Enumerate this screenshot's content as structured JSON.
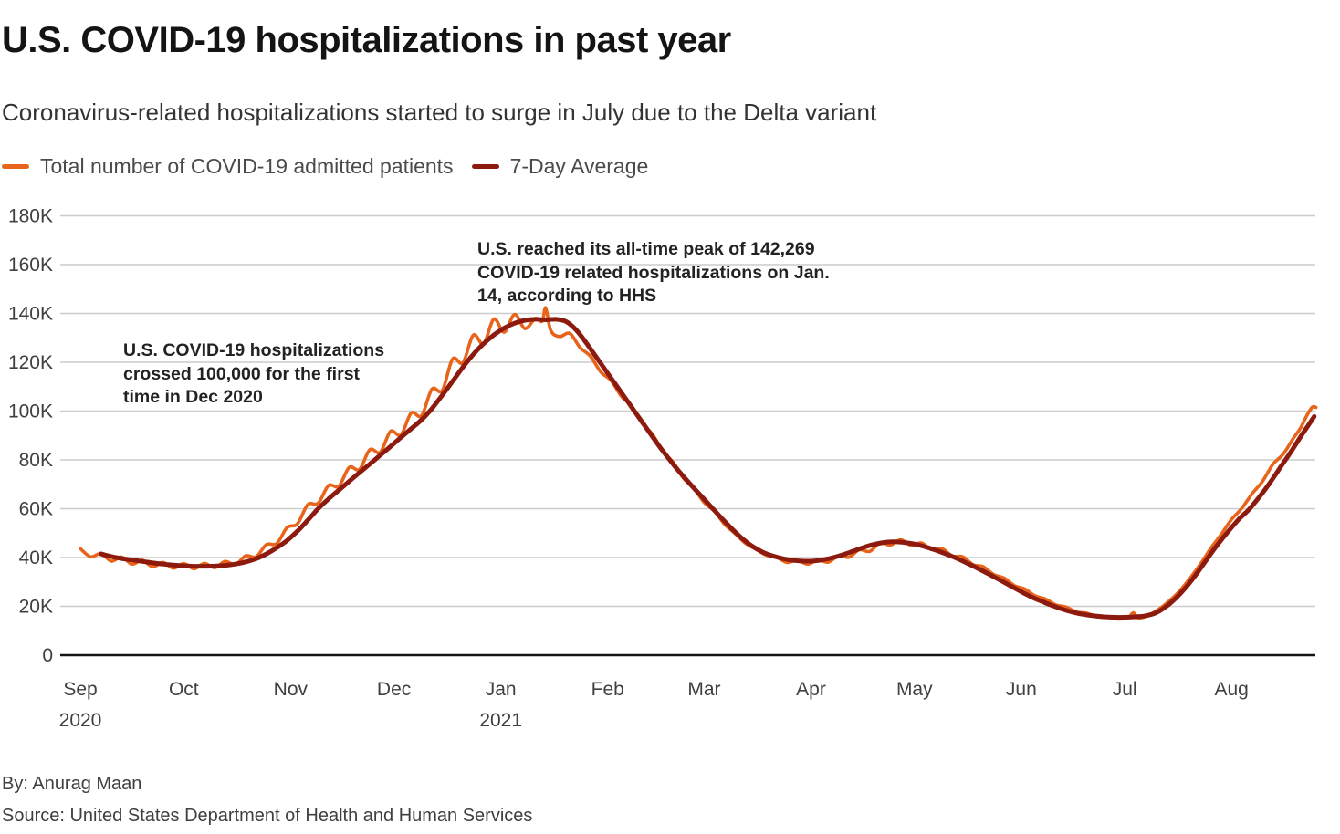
{
  "header": {
    "title": "U.S. COVID-19 hospitalizations in past year",
    "subtitle": "Coronavirus-related hospitalizations started to surge in July due to the Delta variant"
  },
  "legend": {
    "items": [
      {
        "label": "Total number of COVID-19 admitted patients",
        "color": "#E8641A"
      },
      {
        "label": "7-Day Average",
        "color": "#8C1A0E"
      }
    ]
  },
  "annotations": [
    {
      "text": "U.S. COVID-19 hospitalizations\ncrossed 100,000 for the first\ntime in Dec 2020"
    },
    {
      "text": "U.S. reached its all-time peak of 142,269\nCOVID-19 related hospitalizations on Jan.\n14, according to HHS"
    }
  ],
  "footer": {
    "by": "By: Anurag Maan",
    "source": "Source: United States Department of Health and Human Services"
  },
  "chart_data": {
    "type": "line",
    "title": "U.S. COVID-19 hospitalizations in past year",
    "x_unit": "days since Sep 1, 2020",
    "y_unit": "patients (thousands)",
    "xlim": [
      0,
      358.5
    ],
    "ylim": [
      0,
      180
    ],
    "grid": "horizontal",
    "legend_position": "top-left",
    "peak_annotation_value": "142,269",
    "y_ticks": [
      {
        "value": 180,
        "label": "180K"
      },
      {
        "value": 160,
        "label": "160K"
      },
      {
        "value": 140,
        "label": "140K"
      },
      {
        "value": 120,
        "label": "120K"
      },
      {
        "value": 100,
        "label": "100K"
      },
      {
        "value": 80,
        "label": "80K"
      },
      {
        "value": 60,
        "label": "60K"
      },
      {
        "value": 40,
        "label": "40K"
      },
      {
        "value": 20,
        "label": "20K"
      },
      {
        "value": 0,
        "label": "0"
      }
    ],
    "x_ticks": [
      {
        "day": 0,
        "label": "Sep",
        "year": "2020"
      },
      {
        "day": 30,
        "label": "Oct"
      },
      {
        "day": 61,
        "label": "Nov"
      },
      {
        "day": 91,
        "label": "Dec"
      },
      {
        "day": 122,
        "label": "Jan",
        "year": "2021"
      },
      {
        "day": 153,
        "label": "Feb"
      },
      {
        "day": 181,
        "label": "Mar"
      },
      {
        "day": 212,
        "label": "Apr"
      },
      {
        "day": 242,
        "label": "May"
      },
      {
        "day": 273,
        "label": "Jun"
      },
      {
        "day": 303,
        "label": "Jul"
      },
      {
        "day": 334,
        "label": "Aug"
      }
    ],
    "series": [
      {
        "name": "Total number of COVID-19 admitted patients",
        "color": "#E8641A",
        "width": 3.6,
        "points": [
          [
            0,
            43.6
          ],
          [
            3,
            40.3
          ],
          [
            6,
            41.6
          ],
          [
            9,
            38.5
          ],
          [
            12,
            40.2
          ],
          [
            15,
            37.3
          ],
          [
            18,
            38.9
          ],
          [
            21,
            36.2
          ],
          [
            24,
            38.0
          ],
          [
            27,
            35.6
          ],
          [
            30,
            37.5
          ],
          [
            33,
            35.4
          ],
          [
            36,
            37.6
          ],
          [
            39,
            35.8
          ],
          [
            42,
            38.4
          ],
          [
            45,
            37.1
          ],
          [
            48,
            40.7
          ],
          [
            51,
            40.3
          ],
          [
            54,
            45.3
          ],
          [
            57,
            45.7
          ],
          [
            60,
            52.3
          ],
          [
            63,
            53.8
          ],
          [
            66,
            61.7
          ],
          [
            69,
            62.2
          ],
          [
            72,
            69.5
          ],
          [
            75,
            69.2
          ],
          [
            78,
            76.9
          ],
          [
            81,
            76.1
          ],
          [
            84,
            84.2
          ],
          [
            87,
            83.1
          ],
          [
            90,
            91.7
          ],
          [
            93,
            90.2
          ],
          [
            96,
            99.2
          ],
          [
            99,
            98.1
          ],
          [
            102,
            109.0
          ],
          [
            105,
            108.4
          ],
          [
            108,
            121.3
          ],
          [
            111,
            119.8
          ],
          [
            114,
            131.1
          ],
          [
            117,
            127.6
          ],
          [
            120,
            137.7
          ],
          [
            123,
            132.3
          ],
          [
            126,
            139.6
          ],
          [
            129,
            133.8
          ],
          [
            132,
            137.9
          ],
          [
            134,
            136.8
          ],
          [
            135,
            142.3
          ],
          [
            136.5,
            133.0
          ],
          [
            139,
            130.5
          ],
          [
            142,
            131.8
          ],
          [
            145,
            126.0
          ],
          [
            148,
            122.5
          ],
          [
            151,
            116.0
          ],
          [
            154,
            112.5
          ],
          [
            157,
            106.0
          ],
          [
            160,
            102.0
          ],
          [
            163,
            95.0
          ],
          [
            166,
            90.5
          ],
          [
            169,
            83.5
          ],
          [
            172,
            79.0
          ],
          [
            175,
            72.5
          ],
          [
            178,
            68.5
          ],
          [
            181,
            62.5
          ],
          [
            184,
            59.0
          ],
          [
            187,
            53.5
          ],
          [
            190,
            49.8
          ],
          [
            193,
            45.8
          ],
          [
            196,
            43.4
          ],
          [
            199,
            41.0
          ],
          [
            202,
            40.2
          ],
          [
            205,
            38.0
          ],
          [
            208,
            38.9
          ],
          [
            211,
            37.3
          ],
          [
            214,
            39.0
          ],
          [
            217,
            38.1
          ],
          [
            220,
            40.8
          ],
          [
            223,
            40.1
          ],
          [
            226,
            43.2
          ],
          [
            229,
            42.5
          ],
          [
            232,
            46.0
          ],
          [
            235,
            45.1
          ],
          [
            238,
            47.3
          ],
          [
            241,
            45.0
          ],
          [
            244,
            46.0
          ],
          [
            247,
            43.2
          ],
          [
            250,
            43.6
          ],
          [
            253,
            40.6
          ],
          [
            256,
            40.3
          ],
          [
            259,
            37.1
          ],
          [
            262,
            36.2
          ],
          [
            265,
            33.0
          ],
          [
            268,
            31.6
          ],
          [
            271,
            28.5
          ],
          [
            274,
            27.1
          ],
          [
            277,
            24.3
          ],
          [
            280,
            23.0
          ],
          [
            283,
            20.6
          ],
          [
            286,
            19.7
          ],
          [
            289,
            17.7
          ],
          [
            292,
            17.2
          ],
          [
            295,
            15.7
          ],
          [
            298,
            15.6
          ],
          [
            301,
            14.8
          ],
          [
            304,
            15.3
          ],
          [
            305.5,
            17.4
          ],
          [
            307,
            15.2
          ],
          [
            310,
            16.3
          ],
          [
            313,
            18.9
          ],
          [
            316,
            22.3
          ],
          [
            319,
            26.4
          ],
          [
            322,
            31.6
          ],
          [
            325,
            37.4
          ],
          [
            328,
            43.8
          ],
          [
            331,
            49.5
          ],
          [
            334,
            55.6
          ],
          [
            337,
            60.2
          ],
          [
            340,
            66.2
          ],
          [
            343,
            71.2
          ],
          [
            346,
            78.2
          ],
          [
            349,
            82.4
          ],
          [
            352,
            89.0
          ],
          [
            354,
            93.0
          ],
          [
            356,
            98.6
          ],
          [
            357.5,
            101.7
          ],
          [
            358.5,
            101.5
          ]
        ]
      },
      {
        "name": "7-Day Average",
        "color": "#8C1A0E",
        "width": 5,
        "points": [
          [
            6,
            41.5
          ],
          [
            9,
            40.4
          ],
          [
            12,
            39.6
          ],
          [
            15,
            39.0
          ],
          [
            18,
            38.4
          ],
          [
            21,
            37.8
          ],
          [
            24,
            37.3
          ],
          [
            27,
            36.9
          ],
          [
            30,
            36.6
          ],
          [
            33,
            36.4
          ],
          [
            36,
            36.4
          ],
          [
            39,
            36.5
          ],
          [
            42,
            36.8
          ],
          [
            45,
            37.3
          ],
          [
            48,
            38.2
          ],
          [
            51,
            39.5
          ],
          [
            54,
            41.5
          ],
          [
            57,
            44.0
          ],
          [
            60,
            47.0
          ],
          [
            63,
            50.8
          ],
          [
            66,
            55.3
          ],
          [
            69,
            60.0
          ],
          [
            72,
            64.0
          ],
          [
            75,
            67.6
          ],
          [
            78,
            71.2
          ],
          [
            81,
            74.8
          ],
          [
            84,
            78.3
          ],
          [
            87,
            81.9
          ],
          [
            90,
            85.5
          ],
          [
            93,
            89.2
          ],
          [
            96,
            92.8
          ],
          [
            99,
            96.4
          ],
          [
            102,
            101.0
          ],
          [
            105,
            106.5
          ],
          [
            108,
            112.2
          ],
          [
            111,
            118.0
          ],
          [
            114,
            123.2
          ],
          [
            117,
            127.6
          ],
          [
            120,
            131.2
          ],
          [
            123,
            134.0
          ],
          [
            126,
            136.0
          ],
          [
            129,
            137.2
          ],
          [
            132,
            137.6
          ],
          [
            135,
            137.4
          ],
          [
            138,
            137.6
          ],
          [
            141,
            136.6
          ],
          [
            144,
            133.0
          ],
          [
            147,
            127.5
          ],
          [
            150,
            121.5
          ],
          [
            153,
            115.5
          ],
          [
            156,
            109.5
          ],
          [
            159,
            103.5
          ],
          [
            162,
            97.5
          ],
          [
            165,
            91.5
          ],
          [
            168,
            85.5
          ],
          [
            171,
            80.0
          ],
          [
            174,
            74.8
          ],
          [
            177,
            70.0
          ],
          [
            180,
            65.4
          ],
          [
            183,
            60.8
          ],
          [
            186,
            56.2
          ],
          [
            189,
            51.8
          ],
          [
            192,
            47.8
          ],
          [
            195,
            44.6
          ],
          [
            198,
            42.2
          ],
          [
            201,
            40.6
          ],
          [
            204,
            39.5
          ],
          [
            207,
            38.8
          ],
          [
            210,
            38.5
          ],
          [
            213,
            38.6
          ],
          [
            216,
            39.2
          ],
          [
            219,
            40.2
          ],
          [
            222,
            41.5
          ],
          [
            225,
            43.0
          ],
          [
            228,
            44.5
          ],
          [
            231,
            45.6
          ],
          [
            234,
            46.3
          ],
          [
            237,
            46.4
          ],
          [
            240,
            46.0
          ],
          [
            243,
            45.2
          ],
          [
            246,
            44.0
          ],
          [
            249,
            42.6
          ],
          [
            252,
            41.0
          ],
          [
            255,
            39.2
          ],
          [
            258,
            37.2
          ],
          [
            261,
            35.1
          ],
          [
            264,
            32.9
          ],
          [
            267,
            30.6
          ],
          [
            270,
            28.3
          ],
          [
            273,
            26.0
          ],
          [
            276,
            23.8
          ],
          [
            279,
            22.0
          ],
          [
            282,
            20.3
          ],
          [
            285,
            18.8
          ],
          [
            288,
            17.6
          ],
          [
            291,
            16.7
          ],
          [
            294,
            16.1
          ],
          [
            297,
            15.7
          ],
          [
            300,
            15.5
          ],
          [
            303,
            15.5
          ],
          [
            306,
            15.7
          ],
          [
            309,
            16.1
          ],
          [
            312,
            17.3
          ],
          [
            315,
            19.9
          ],
          [
            318,
            23.6
          ],
          [
            321,
            28.2
          ],
          [
            324,
            33.6
          ],
          [
            327,
            39.6
          ],
          [
            330,
            45.4
          ],
          [
            333,
            50.6
          ],
          [
            336,
            55.5
          ],
          [
            339,
            59.6
          ],
          [
            342,
            64.7
          ],
          [
            345,
            70.3
          ],
          [
            348,
            76.6
          ],
          [
            351,
            82.8
          ],
          [
            354,
            89.4
          ],
          [
            356,
            93.6
          ],
          [
            358,
            97.8
          ]
        ]
      }
    ]
  }
}
